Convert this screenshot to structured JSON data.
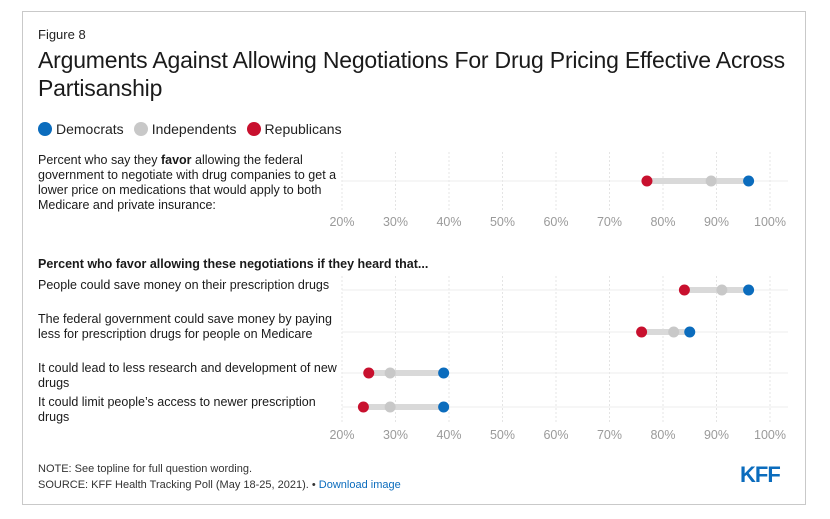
{
  "figure_label": "Figure 8",
  "title": "Arguments Against Allowing Negotiations For Drug Pricing Effective Across Partisanship",
  "legend": [
    {
      "label": "Democrats",
      "color": "#0b6cbd"
    },
    {
      "label": "Independents",
      "color": "#c8c8c8"
    },
    {
      "label": "Republicans",
      "color": "#c8102e"
    }
  ],
  "top_question": {
    "pre": "Percent who say they ",
    "bold": "favor",
    "post": " allowing the federal government to negotiate with drug companies to get a lower price on medications that would apply to both Medicare and private insurance:"
  },
  "section_heading": "Percent who favor allowing these negotiations if they heard that...",
  "notes": {
    "note": "NOTE: See topline for full question wording.",
    "source": "SOURCE: KFF Health Tracking Poll (May 18-25, 2021). • ",
    "link": "Download image"
  },
  "logo": "KFF",
  "chart_data": [
    {
      "type": "dot",
      "xlim": [
        20,
        100
      ],
      "ticks": [
        "20%",
        "30%",
        "40%",
        "50%",
        "60%",
        "70%",
        "80%",
        "90%",
        "100%"
      ],
      "categories": [
        "Percent who say they favor allowing the federal government to negotiate with drug companies to get a lower price on medications that would apply to both Medicare and private insurance:"
      ],
      "series": [
        {
          "name": "Democrats",
          "values": [
            96
          ]
        },
        {
          "name": "Independents",
          "values": [
            89
          ]
        },
        {
          "name": "Republicans",
          "values": [
            77
          ]
        }
      ]
    },
    {
      "type": "dot",
      "xlim": [
        20,
        100
      ],
      "ticks": [
        "20%",
        "30%",
        "40%",
        "50%",
        "60%",
        "70%",
        "80%",
        "90%",
        "100%"
      ],
      "categories": [
        "People could save money on their prescription drugs",
        "The federal government could save money by paying less for prescription drugs for people on Medicare",
        "It could lead to less research and development of new drugs",
        "It could limit people’s access to newer prescription drugs"
      ],
      "series": [
        {
          "name": "Democrats",
          "values": [
            96,
            85,
            39,
            39
          ]
        },
        {
          "name": "Independents",
          "values": [
            91,
            82,
            29,
            29
          ]
        },
        {
          "name": "Republicans",
          "values": [
            84,
            76,
            25,
            24
          ]
        }
      ]
    }
  ]
}
